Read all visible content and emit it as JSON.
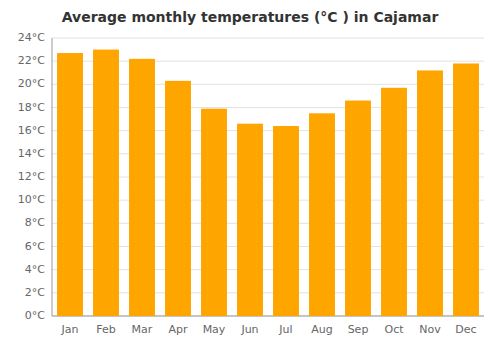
{
  "chart_data": {
    "type": "bar",
    "title": "Average monthly temperatures (°C ) in Cajamar",
    "categories": [
      "Jan",
      "Feb",
      "Mar",
      "Apr",
      "May",
      "Jun",
      "Jul",
      "Aug",
      "Sep",
      "Oct",
      "Nov",
      "Dec"
    ],
    "values": [
      22.7,
      23.0,
      22.2,
      20.3,
      17.9,
      16.6,
      16.4,
      17.5,
      18.6,
      19.7,
      21.2,
      21.8
    ],
    "color": "#FFA500",
    "ylim": [
      0,
      24
    ],
    "yticks": [
      {
        "value": 0,
        "label": "0°C"
      },
      {
        "value": 2,
        "label": "2°C"
      },
      {
        "value": 4,
        "label": "4°C"
      },
      {
        "value": 6,
        "label": "6°C"
      },
      {
        "value": 8,
        "label": "8°C"
      },
      {
        "value": 10,
        "label": "10°C"
      },
      {
        "value": 12,
        "label": "12°C"
      },
      {
        "value": 14,
        "label": "14°C"
      },
      {
        "value": 16,
        "label": "16°C"
      },
      {
        "value": 18,
        "label": "18°C"
      },
      {
        "value": 20,
        "label": "20°C"
      },
      {
        "value": 22,
        "label": "22°C"
      },
      {
        "value": 24,
        "label": "24°C"
      }
    ],
    "grid": true
  }
}
